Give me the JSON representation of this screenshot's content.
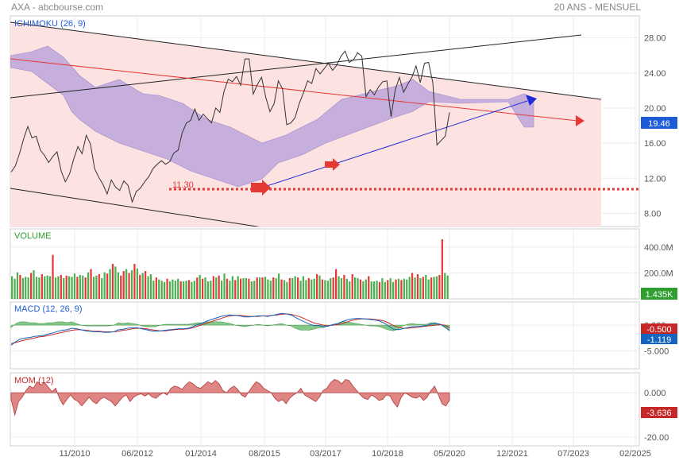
{
  "header": {
    "title": "AXA - abcbourse.com",
    "period": "20 ANS - MENSUEL"
  },
  "colors": {
    "price_line": "#333333",
    "cloud_fill": "#b39ddb",
    "channel_fill": "#fde2e2",
    "red_trend": "#e53935",
    "blue_trend": "#1e2bd6",
    "volume_up": "#4caf50",
    "volume_down": "#e53935",
    "macd_line": "#1565c0",
    "signal_line": "#c62828",
    "histogram": "#66bb6a",
    "mom_fill": "#d9706f",
    "ichimoku_title": "#1e5bd6",
    "volume_title": "#2e9e2e",
    "macd_title": "#1e5bd6",
    "mom_title": "#c62828"
  },
  "chart_data": [
    {
      "type": "line",
      "panel": "price",
      "title": "ICHIMOKU (26, 9)",
      "x_ticks": [
        "11/2010",
        "06/2012",
        "01/2014",
        "08/2015",
        "03/2017",
        "10/2018",
        "05/2020",
        "12/2021",
        "07/2023",
        "02/2025"
      ],
      "y_ticks": [
        "8.00",
        "12.00",
        "16.00",
        "20.00",
        "24.00",
        "28.00"
      ],
      "ylim": [
        6.5,
        30.5
      ],
      "last_value": "19.46",
      "support_label": "11.30",
      "series": [
        {
          "values": [
            12.7,
            13.4,
            14.8,
            16.5,
            17.9,
            16.6,
            16.8,
            15.2,
            14.6,
            13.8,
            14.5,
            15.0,
            12.8,
            11.6,
            12.5,
            14.2,
            15.6,
            14.8,
            16.9,
            15.9,
            13.1,
            12.1,
            11.3,
            10.2,
            11.8,
            11.0,
            10.6,
            11.7,
            11.2,
            9.3,
            10.5,
            10.9,
            11.6,
            12.2,
            13.1,
            13.6,
            14.0,
            13.6,
            13.9,
            14.9,
            15.2,
            17.2,
            18.3,
            18.6,
            19.9,
            18.6,
            19.3,
            18.8,
            18.3,
            20.0,
            19.5,
            21.9,
            23.3,
            23.0,
            23.6,
            22.6,
            25.6,
            25.6,
            21.6,
            22.7,
            23.5,
            21.2,
            19.6,
            20.5,
            23.1,
            22.2,
            18.1,
            18.3,
            18.9,
            20.5,
            21.7,
            23.1,
            22.8,
            24.5,
            23.9,
            24.5,
            25.1,
            24.3,
            24.9,
            25.9,
            26.5,
            25.2,
            25.5,
            26.3,
            25.9,
            21.3,
            22.1,
            21.5,
            22.4,
            23.0,
            23.1,
            19.0,
            22.1,
            23.5,
            21.8,
            22.7,
            23.5,
            24.8,
            22.9,
            25.1,
            25.2,
            22.9,
            15.8,
            16.3,
            16.8,
            19.5
          ]
        }
      ]
    },
    {
      "type": "bar",
      "panel": "volume",
      "title": "VOLUME",
      "y_ticks": [
        "200.0M",
        "400.0M"
      ],
      "ylim": [
        0,
        540
      ],
      "last_value": "1.435K",
      "values": [
        175,
        155,
        205,
        185,
        160,
        170,
        165,
        200,
        220,
        170,
        165,
        190,
        175,
        180,
        175,
        340,
        165,
        175,
        185,
        160,
        180,
        175,
        170,
        195,
        170,
        185,
        180,
        165,
        205,
        230,
        170,
        180,
        190,
        160,
        205,
        195,
        230,
        270,
        250,
        205,
        180,
        215,
        230,
        200,
        220,
        270,
        235,
        185,
        200,
        215,
        175,
        190,
        140,
        165,
        150,
        140,
        130,
        155,
        135,
        150,
        140,
        155,
        135,
        135,
        140,
        145,
        130,
        140,
        165,
        185,
        155,
        165,
        135,
        140,
        175,
        165,
        180,
        140,
        195,
        155,
        140,
        175,
        145,
        175,
        155,
        160,
        160,
        155,
        135,
        140,
        165,
        165,
        165,
        170,
        150,
        140,
        165,
        160,
        195,
        150,
        145,
        130,
        160,
        160,
        175,
        165,
        140,
        175,
        145,
        160,
        150,
        155,
        190,
        180,
        150,
        145,
        140,
        160,
        165,
        230,
        175,
        160,
        185,
        155,
        135,
        190,
        165,
        160,
        150,
        135,
        150,
        175,
        135,
        135,
        140,
        130,
        160,
        130,
        145,
        160,
        130,
        150,
        155,
        145,
        155,
        150,
        170,
        200,
        165,
        190,
        160,
        170,
        185,
        150,
        165,
        170,
        175,
        185,
        460,
        200,
        180
      ],
      "up": [
        1,
        1,
        1,
        0,
        1,
        1,
        1,
        0,
        1,
        1,
        1,
        0,
        1,
        1,
        1,
        0,
        1,
        1,
        0,
        1,
        0,
        1,
        1,
        1,
        0,
        1,
        1,
        0,
        1,
        0,
        1,
        1,
        0,
        1,
        1,
        0,
        1,
        0,
        1,
        1,
        0,
        0,
        1,
        0,
        1,
        0,
        1,
        0,
        1,
        0,
        1,
        1,
        1,
        0,
        1,
        1,
        1,
        0,
        1,
        1,
        1,
        1,
        0,
        1,
        1,
        0,
        1,
        1,
        0,
        1,
        0,
        1,
        1,
        1,
        0,
        1,
        0,
        1,
        1,
        0,
        1,
        1,
        0,
        1,
        0,
        1,
        1,
        0,
        1,
        1,
        0,
        1,
        0,
        1,
        1,
        1,
        0,
        1,
        1,
        0,
        1,
        1,
        0,
        1,
        1,
        0,
        1,
        1,
        1,
        0,
        1,
        1,
        0,
        1,
        0,
        1,
        1,
        1,
        0,
        0,
        1,
        1,
        0,
        1,
        1,
        0,
        1,
        1,
        0,
        1,
        1,
        0,
        1,
        1,
        1,
        0,
        1,
        1,
        0,
        1,
        1,
        0,
        1,
        0,
        1,
        1,
        1,
        0,
        1,
        0,
        1,
        0,
        1,
        1,
        0,
        1,
        1,
        0,
        0,
        1,
        1
      ]
    },
    {
      "type": "line",
      "panel": "macd",
      "title": "MACD (12, 26, 9)",
      "y_ticks": [
        "0.000",
        "-5.000"
      ],
      "ylim": [
        -8.5,
        4.5
      ],
      "last_values": [
        "-0.500",
        "-1.119"
      ],
      "series": [
        {
          "name": "MACD",
          "values": [
            -3.9,
            -3.2,
            -2.7,
            -2.5,
            -2.4,
            -2.2,
            -2.1,
            -2.0,
            -1.7,
            -1.5,
            -1.2,
            -1.0,
            -0.9,
            -0.6,
            -0.7,
            -0.9,
            -1.1,
            -1.2,
            -1.3,
            -1.3,
            -1.4,
            -1.4,
            -1.3,
            -0.9,
            -0.8,
            -0.6,
            -0.5,
            -0.5,
            -0.7,
            -0.9,
            -1.1,
            -1.2,
            -1.1,
            -1.0,
            -0.9,
            -0.8,
            -0.7,
            -0.7,
            -0.6,
            -0.3,
            0.1,
            0.4,
            0.8,
            1.1,
            1.4,
            1.7,
            1.9,
            2.0,
            1.9,
            1.8,
            1.6,
            1.6,
            1.7,
            1.8,
            1.8,
            1.7,
            1.9,
            2.1,
            2.3,
            2.2,
            2.0,
            1.5,
            1.0,
            0.6,
            0.2,
            -0.1,
            -0.1,
            -0.3,
            -0.2,
            0.1,
            0.3,
            0.7,
            1.0,
            1.2,
            1.3,
            1.3,
            1.2,
            1.1,
            1.0,
            0.8,
            0.4,
            -0.2,
            -0.8,
            -0.9,
            -0.7,
            -0.5,
            -0.3,
            -0.3,
            -0.2,
            -0.1,
            0.2,
            0.3,
            0.2,
            -0.3,
            -1.1
          ]
        },
        {
          "name": "Signal",
          "values": [
            -3.6,
            -3.4,
            -3.1,
            -2.9,
            -2.7,
            -2.5,
            -2.3,
            -2.2,
            -2.0,
            -1.8,
            -1.6,
            -1.4,
            -1.2,
            -1.0,
            -0.9,
            -0.9,
            -1.0,
            -1.1,
            -1.2,
            -1.2,
            -1.3,
            -1.3,
            -1.3,
            -1.2,
            -1.0,
            -0.9,
            -0.7,
            -0.6,
            -0.6,
            -0.7,
            -0.9,
            -1.0,
            -1.1,
            -1.1,
            -1.0,
            -0.9,
            -0.8,
            -0.8,
            -0.7,
            -0.5,
            -0.2,
            0.1,
            0.4,
            0.7,
            1.0,
            1.3,
            1.6,
            1.8,
            1.9,
            1.9,
            1.8,
            1.7,
            1.7,
            1.7,
            1.8,
            1.8,
            1.9,
            2.0,
            2.1,
            2.2,
            2.1,
            1.9,
            1.6,
            1.2,
            0.8,
            0.4,
            0.2,
            0.0,
            -0.1,
            0.0,
            0.1,
            0.3,
            0.6,
            0.9,
            1.1,
            1.2,
            1.2,
            1.2,
            1.1,
            1.0,
            0.8,
            0.4,
            -0.1,
            -0.4,
            -0.6,
            -0.6,
            -0.5,
            -0.4,
            -0.3,
            -0.2,
            -0.1,
            0.0,
            0.1,
            0.0,
            -0.5
          ]
        }
      ]
    },
    {
      "type": "area",
      "panel": "mom",
      "title": "MOM (12)",
      "y_ticks": [
        "0.000",
        "-20.00"
      ],
      "ylim": [
        -24,
        9
      ],
      "last_value": "-3.636",
      "values": [
        -3.0,
        -10.0,
        -4.0,
        -2.0,
        1.0,
        3.0,
        2.0,
        5.0,
        3.5,
        4.5,
        2.5,
        0.5,
        2.0,
        -2.5,
        -5.5,
        -3.0,
        -1.0,
        -3.0,
        -4.0,
        -6.0,
        -4.0,
        -2.0,
        -4.0,
        -5.0,
        -3.0,
        -2.0,
        -3.0,
        -4.0,
        -6.0,
        -4.0,
        -2.0,
        -1.0,
        -4.0,
        -2.0,
        -1.0,
        -0.5,
        -1.5,
        -0.5,
        -2.0,
        -2.5,
        -1.0,
        0.0,
        -1.0,
        2.0,
        3.0,
        2.5,
        1.5,
        3.5,
        5.0,
        4.0,
        2.5,
        2.0,
        3.5,
        5.0,
        4.0,
        5.5,
        4.0,
        1.0,
        0.0,
        2.0,
        3.0,
        1.5,
        -1.0,
        -2.0,
        0.5,
        3.0,
        5.0,
        4.0,
        2.0,
        1.0,
        0.0,
        -2.5,
        -4.0,
        -3.0,
        -5.0,
        -2.5,
        -1.0,
        0.0,
        2.0,
        -1.0,
        -2.0,
        -3.0,
        -4.0,
        -2.0,
        1.0,
        2.0,
        4.5,
        6.0,
        5.5,
        4.0,
        6.0,
        5.5,
        3.0,
        1.0,
        -1.0,
        -2.5,
        -3.0,
        -1.0,
        -2.0,
        -3.5,
        -3.0,
        -1.0,
        -1.5,
        -4.5,
        -6.5,
        -2.0,
        0.0,
        -1.0,
        -2.0,
        -2.5,
        -1.5,
        -3.5,
        -2.0,
        1.0,
        3.0,
        -1.0,
        -5.0,
        -6.0,
        -3.5
      ]
    }
  ]
}
